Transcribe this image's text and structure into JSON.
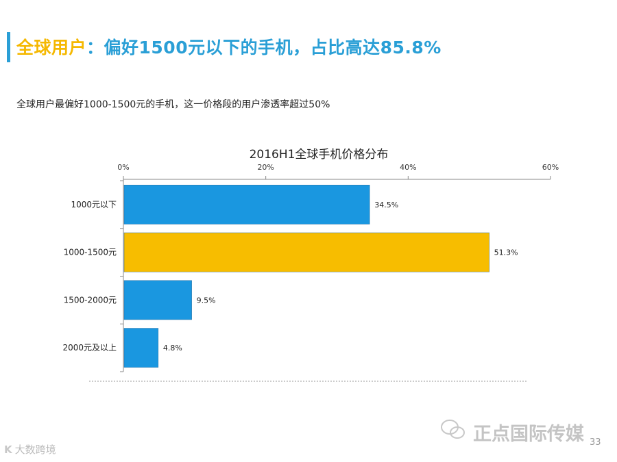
{
  "header": {
    "title_prefix": "全球用户",
    "title_rest": "：偏好1500元以下的手机，占比高达85.8%",
    "subtitle": "全球用户最偏好1000-1500元的手机，这一价格段的用户渗透率超过50%"
  },
  "chart_data": {
    "type": "bar",
    "orientation": "horizontal",
    "title": "2016H1全球手机价格分布",
    "categories": [
      "1000元以下",
      "1000-1500元",
      "1500-2000元",
      "2000元及以上"
    ],
    "values": [
      34.5,
      51.3,
      9.5,
      4.8
    ],
    "value_labels": [
      "34.5%",
      "51.3%",
      "9.5%",
      "4.8%"
    ],
    "bar_colors": [
      "#1a97e0",
      "#f7bd00",
      "#1a97e0",
      "#1a97e0"
    ],
    "xlim": [
      0,
      60
    ],
    "x_ticks": [
      "0%",
      "20%",
      "40%",
      "60%"
    ],
    "axis_position": "top",
    "grid": false
  },
  "footer": {
    "watermark": "正点国际传媒",
    "page_number": "33",
    "corner_logo_mark": "K",
    "corner_logo_text": "大数跨境"
  }
}
